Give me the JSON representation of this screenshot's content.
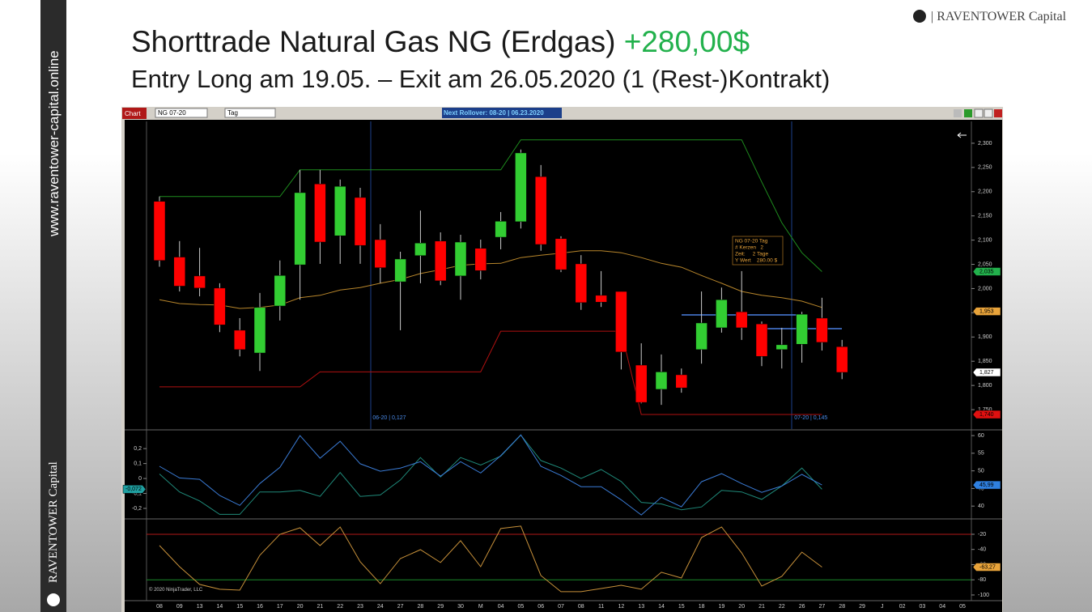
{
  "header": {
    "title": "Shorttrade Natural Gas NG (Erdgas)",
    "profit": "+280,00$",
    "subtitle": "Entry Long am 19.05. – Exit am 26.05.2020 (1 (Rest-)Kontrakt)"
  },
  "sidebar": {
    "url": "www.raventower-capital.online",
    "brand": "RAVENTOWER Capital"
  },
  "logo": "| RAVENTOWER Capital",
  "toolbar": {
    "tab": "Chart",
    "instrument": "NG 07-20",
    "period": "Tag",
    "rollover": "Next Rollover: 08-20 | 06.23.2020"
  },
  "copyright": "© 2020 NinjaTrader, LLC",
  "chart_data": [
    {
      "type": "candlestick",
      "categories": [
        "08",
        "09",
        "13",
        "14",
        "15",
        "16",
        "17",
        "20",
        "21",
        "22",
        "23",
        "24",
        "27",
        "28",
        "29",
        "30",
        "M",
        "04",
        "05",
        "06",
        "07",
        "08",
        "11",
        "12",
        "13",
        "14",
        "15",
        "18",
        "19",
        "20",
        "21",
        "22",
        "26",
        "27",
        "28",
        "29",
        "J",
        "02",
        "03",
        "04",
        "05"
      ],
      "open": [
        2180,
        2065,
        2026,
        2001,
        1914,
        1867,
        1964,
        2049,
        2216,
        2109,
        2188,
        2101,
        2014,
        2068,
        2098,
        2026,
        2083,
        2106,
        2138,
        2231,
        2103,
        2051,
        1986,
        1994,
        1842,
        1792,
        1822,
        1874,
        1919,
        1952,
        1927,
        1874,
        1885,
        1939,
        1880,
        null,
        null,
        null,
        null,
        null,
        null
      ],
      "high": [
        2190,
        2098,
        2084,
        2011,
        1939,
        1991,
        2058,
        2245,
        2245,
        2225,
        2208,
        2133,
        2076,
        2161,
        2116,
        2111,
        2101,
        2158,
        2287,
        2255,
        2108,
        2069,
        2036,
        1994,
        1887,
        1864,
        1835,
        1994,
        2002,
        2036,
        1932,
        1919,
        1952,
        1981,
        1894,
        null,
        null,
        null,
        null,
        null,
        null
      ],
      "low": [
        2045,
        1994,
        1984,
        1910,
        1860,
        1830,
        1934,
        1977,
        2051,
        2051,
        2051,
        2011,
        1914,
        2011,
        2007,
        1977,
        2019,
        2081,
        2124,
        2078,
        2034,
        1956,
        1962,
        1833,
        1763,
        1760,
        1785,
        1845,
        1909,
        1894,
        1840,
        1835,
        1847,
        1872,
        1813,
        null,
        null,
        null,
        null,
        null,
        null
      ],
      "close": [
        2058,
        2005,
        2001,
        1925,
        1874,
        1961,
        2027,
        2198,
        2096,
        2211,
        2089,
        2043,
        2061,
        2094,
        2016,
        2096,
        2037,
        2139,
        2280,
        2091,
        2039,
        1971,
        1972,
        1869,
        1765,
        1828,
        1795,
        1929,
        1977,
        1919,
        1860,
        1884,
        1947,
        1889,
        1827,
        null,
        null,
        null,
        null,
        null,
        null
      ],
      "up_color": "#32cd32",
      "down_color": "#ff0000",
      "series": [
        {
          "color": "#1e8c1e",
          "values": [
            2190,
            2190,
            2190,
            2190,
            2190,
            2190,
            2190,
            2245,
            2245,
            2245,
            2245,
            2245,
            2245,
            2245,
            2245,
            2245,
            2245,
            2245,
            2307,
            2307,
            2307,
            2307,
            2307,
            2307,
            2307,
            2307,
            2307,
            2307,
            2307,
            2307,
            2220,
            2136,
            2074,
            2035,
            null,
            null,
            null,
            null,
            null,
            null,
            null
          ]
        },
        {
          "color": "#b8862b",
          "values": [
            1977,
            1969,
            1967,
            1966,
            1959,
            1961,
            1966,
            1981,
            1986,
            1997,
            2002,
            2011,
            2019,
            2031,
            2039,
            2048,
            2051,
            2052,
            2064,
            2069,
            2073,
            2078,
            2078,
            2074,
            2064,
            2052,
            2044,
            2027,
            2011,
            1994,
            1986,
            1981,
            1974,
            1961,
            null,
            null,
            null,
            null,
            null,
            null,
            null
          ]
        },
        {
          "color": "#b01010",
          "values": [
            1797,
            1797,
            1797,
            1797,
            1797,
            1797,
            1797,
            1797,
            1828,
            1828,
            1828,
            1828,
            1828,
            1828,
            1828,
            1828,
            1828,
            1912,
            1912,
            1912,
            1912,
            1912,
            1912,
            1912,
            1740,
            1740,
            1740,
            1740,
            1740,
            1740,
            1740,
            1740,
            1740,
            1740,
            null,
            null,
            null,
            null,
            null,
            null,
            null
          ]
        }
      ],
      "ylim": [
        1710,
        2345
      ],
      "yticks": [
        {
          "value": 2300,
          "label": "2,300"
        },
        {
          "value": 2250,
          "label": "2,250"
        },
        {
          "value": 2200,
          "label": "2,200"
        },
        {
          "value": 2150,
          "label": "2,150"
        },
        {
          "value": 2100,
          "label": "2,100"
        },
        {
          "value": 2050,
          "label": "2,050"
        },
        {
          "value": 2000,
          "label": "2,000"
        },
        {
          "value": 1950,
          "label": "1,950"
        },
        {
          "value": 1900,
          "label": "1,900"
        },
        {
          "value": 1850,
          "label": "1,850"
        },
        {
          "value": 1800,
          "label": "1,800"
        },
        {
          "value": 1750,
          "label": "1,750"
        }
      ],
      "price_markers": [
        {
          "value": 2035,
          "label": "2,035",
          "color": "#22b14c"
        },
        {
          "value": 1953,
          "label": "1,953",
          "color": "#e8a33a"
        },
        {
          "value": 1827,
          "label": "1,827",
          "color": "#ffffff"
        },
        {
          "value": 1740,
          "label": "1,740",
          "color": "#e01010"
        }
      ],
      "rollovers": [
        "06-20 | 0,127",
        "07-20 | 0,145"
      ],
      "tooltip": [
        "NG 07-20 Tag",
        "# Kerzen   2",
        "Zeit:     2 Tage",
        "Y Wert    280.00 $"
      ]
    },
    {
      "type": "line",
      "series": [
        {
          "color": "#1f8a7a",
          "values": [
            0.03,
            -0.09,
            -0.15,
            -0.24,
            -0.24,
            -0.09,
            -0.09,
            -0.08,
            -0.12,
            0.04,
            -0.12,
            -0.11,
            -0.01,
            0.14,
            0.01,
            0.14,
            0.09,
            0.15,
            0.29,
            0.12,
            0.07,
            0,
            0.06,
            -0.02,
            -0.16,
            -0.17,
            -0.21,
            -0.19,
            -0.08,
            -0.09,
            -0.14,
            -0.05,
            0.07,
            -0.072,
            null,
            null,
            null,
            null,
            null,
            null,
            null
          ]
        },
        {
          "color": "#3a7bd5",
          "axis": "y2",
          "values": [
            51.3,
            48.0,
            47.6,
            43.0,
            40.2,
            46.4,
            51.0,
            60,
            53.6,
            58.4,
            52.0,
            49.9,
            50.8,
            52.6,
            48.5,
            52.6,
            49.4,
            54.3,
            60.2,
            51.3,
            48.7,
            45.5,
            45.5,
            41.8,
            37.5,
            42.5,
            39.8,
            46.9,
            49.2,
            46.4,
            43.9,
            45.7,
            49.0,
            45.99,
            null,
            null,
            null,
            null,
            null,
            null,
            null
          ]
        }
      ],
      "ylim": [
        -0.265,
        0.32
      ],
      "yticks": [
        {
          "value": 0.2,
          "label": "0,2"
        },
        {
          "value": 0.1,
          "label": "0,1"
        },
        0,
        {
          "value": -0.1,
          "label": "-0,1"
        },
        {
          "value": -0.2,
          "label": "-0,2"
        }
      ],
      "y2lim": [
        36.6,
        61.4
      ],
      "y2ticks": [
        60,
        55,
        50,
        45,
        40
      ],
      "markers": [
        {
          "value": -0.072,
          "label": "-0,072",
          "color": "#1f9fa0"
        },
        {
          "value": 45.99,
          "label": "45,99",
          "color": "#2f80e0",
          "axis": "y2"
        }
      ]
    },
    {
      "type": "line",
      "series": [
        {
          "color": "#c8913a",
          "axis": "y2",
          "values": [
            -34.9,
            -62.7,
            -86.1,
            -92.5,
            -93.6,
            -47.7,
            -20,
            -11.5,
            -34.9,
            -10.4,
            -56.3,
            -85.1,
            -52,
            -40.3,
            -57.3,
            -28.5,
            -62.7,
            -12.5,
            -9.3,
            -74.4,
            -95.7,
            -95.7,
            -91.5,
            -87.2,
            -92.5,
            -70.1,
            -77.6,
            -24.3,
            -10.4,
            -44.5,
            -88.3,
            -75.5,
            -43.5,
            -63.27,
            null,
            null,
            null,
            null,
            null,
            null,
            null
          ]
        }
      ],
      "y2lim": [
        -107.5,
        -1.9
      ],
      "y2ticks": [
        -20,
        -40,
        -60,
        -80,
        -100
      ],
      "levels": [
        {
          "value": -20,
          "color": "#b01818"
        },
        {
          "value": -80,
          "color": "#1a8a2a"
        }
      ],
      "markers": [
        {
          "value": -63.27,
          "label": "-63,27",
          "color": "#e8a33a",
          "axis": "y2"
        }
      ]
    }
  ]
}
